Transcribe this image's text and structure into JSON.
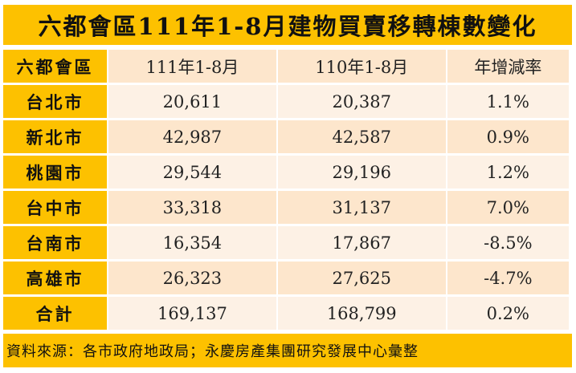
{
  "title": "六都會區111年1-8月建物買賣移轉棟數變化",
  "headers": [
    "六都會區",
    "111年1-8月",
    "110年1-8月",
    "年增減率"
  ],
  "rows": [
    [
      "台北市",
      "20,611",
      "20,387",
      "1.1%"
    ],
    [
      "新北市",
      "42,987",
      "42,587",
      "0.9%"
    ],
    [
      "桃園市",
      "29,544",
      "29,196",
      "1.2%"
    ],
    [
      "台中市",
      "33,318",
      "31,137",
      "7.0%"
    ],
    [
      "台南市",
      "16,354",
      "17,867",
      "-8.5%"
    ],
    [
      "高雄市",
      "26,323",
      "27,625",
      "-4.7%"
    ],
    [
      "合計",
      "169,137",
      "168,799",
      "0.2%"
    ]
  ],
  "footer": "資料來源：各市政府地政局；永慶房產集團研究發展中心彙整"
}
